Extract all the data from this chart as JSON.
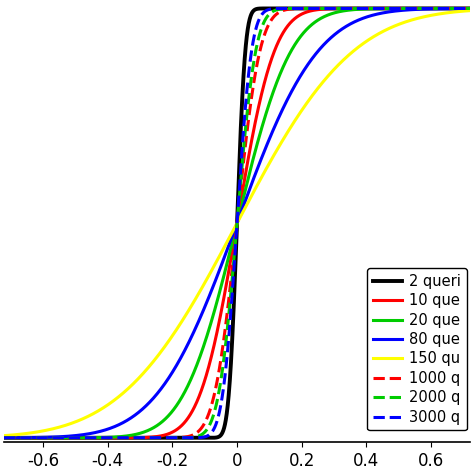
{
  "series": [
    {
      "label": "2 queri",
      "color": "#000000",
      "linestyle": "-",
      "lw": 2.8,
      "sigma": 0.02
    },
    {
      "label": "10 que",
      "color": "#ff0000",
      "linestyle": "-",
      "lw": 2.2,
      "sigma": 0.09
    },
    {
      "label": "20 que",
      "color": "#00cc00",
      "linestyle": "-",
      "lw": 2.2,
      "sigma": 0.13
    },
    {
      "label": "80 que",
      "color": "#0000ff",
      "linestyle": "-",
      "lw": 2.2,
      "sigma": 0.195
    },
    {
      "label": "150 qu",
      "color": "#ffff00",
      "linestyle": "-",
      "lw": 2.2,
      "sigma": 0.28
    },
    {
      "label": "1000 q",
      "color": "#ff0000",
      "linestyle": "--",
      "lw": 2.2,
      "sigma": 0.055
    },
    {
      "label": "2000 q",
      "color": "#00cc00",
      "linestyle": "--",
      "lw": 2.2,
      "sigma": 0.045
    },
    {
      "label": "3000 q",
      "color": "#0000ff",
      "linestyle": "--",
      "lw": 2.2,
      "sigma": 0.035
    }
  ],
  "xlim": [
    -0.72,
    0.72
  ],
  "ylim": [
    -0.01,
    1.01
  ],
  "xticks": [
    -0.6,
    -0.4,
    -0.2,
    0,
    0.2,
    0.4,
    0.6
  ],
  "xticklabels": [
    "-0.6",
    "-0.4",
    "-0.2",
    "0",
    "0.2",
    "0.4",
    "0.6"
  ],
  "mu": 0.0,
  "background_color": "#ffffff",
  "legend_fontsize": 10.5
}
